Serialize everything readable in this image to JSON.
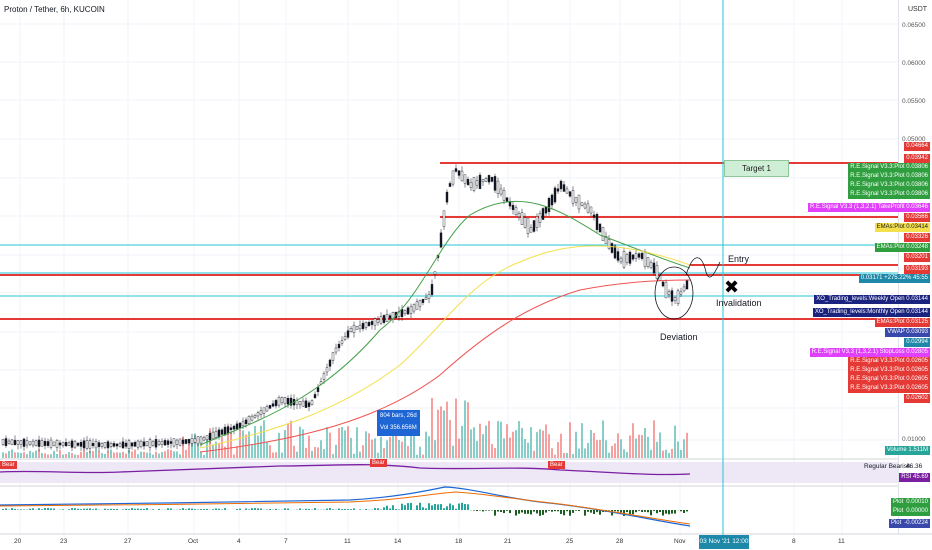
{
  "title": "Proton / Tether, 6h, KUCOIN",
  "currency": "USDT",
  "y_axis_ticks": [
    "0.06500",
    "0.06000",
    "0.05500",
    "0.05000",
    "0.01000"
  ],
  "x_axis_ticks": [
    "20",
    "23",
    "27",
    "Oct",
    "4",
    "7",
    "11",
    "14",
    "18",
    "21",
    "25",
    "28",
    "Nov",
    "8",
    "11"
  ],
  "x_axis_highlight": "03 Nov '21  12:00",
  "annotations": {
    "target": "Target 1",
    "entry": "Entry",
    "invalidation": "Invalidation",
    "deviation": "Deviation",
    "bar_tip_line1": "804 bars, 26d",
    "bar_tip_line2": "Vol 356.656M",
    "bear1": "Bear",
    "bear2": "Bear",
    "bear3": "Bear"
  },
  "price_tags": [
    {
      "text": "0.04664",
      "color": "#e53935"
    },
    {
      "text": "0.03942",
      "color": "#e53935"
    },
    {
      "text": "R.E.Signal V3.3:Plot  0.03806",
      "color": "#2e9e3e"
    },
    {
      "text": "R.E.Signal V3.3:Plot  0.03806",
      "color": "#2e9e3e"
    },
    {
      "text": "R.E.Signal V3.3:Plot  0.03806",
      "color": "#2e9e3e"
    },
    {
      "text": "R.E.Signal V3.3:Plot  0.03806",
      "color": "#2e9e3e"
    },
    {
      "text": "R.E.Signal V3.3 (1,3,2.1) TakeProfit  0.03646",
      "color": "#e040fb"
    },
    {
      "text": "0.03566",
      "color": "#e53935"
    },
    {
      "text": "EMAs:Plot  0.03414",
      "color": "#f4e04d"
    },
    {
      "text": "0.03326",
      "color": "#e53935"
    },
    {
      "text": "EMAs:Plot  0.03248",
      "color": "#2e9e3e"
    },
    {
      "text": "0.03201",
      "color": "#e53935"
    },
    {
      "text": "0.03193",
      "color": "#e53935"
    },
    {
      "text": "0.03171  +275.22%  45:55",
      "color": "#1e88a8"
    },
    {
      "text": "XO_Trading_levels:Weekly Open  0.03144",
      "color": "#1a237e"
    },
    {
      "text": "XO_Trading_levels:Monthly Open  0.03144",
      "color": "#1a237e"
    },
    {
      "text": "EMAs:Plot  0.03125",
      "color": "#e53935"
    },
    {
      "text": "VWAP  0.03093",
      "color": "#3949ab"
    },
    {
      "text": "0.02994",
      "color": "#1e88a8"
    },
    {
      "text": "R.E.Signal V3.3 (1,3,2.1) StopLoss  0.02805",
      "color": "#e040fb"
    },
    {
      "text": "R.E.Signal V3.3:Plot  0.02605",
      "color": "#e53935"
    },
    {
      "text": "R.E.Signal V3.3:Plot  0.02605",
      "color": "#e53935"
    },
    {
      "text": "R.E.Signal V3.3:Plot  0.02605",
      "color": "#e53935"
    },
    {
      "text": "R.E.Signal V3.3:Plot  0.02605",
      "color": "#e53935"
    },
    {
      "text": "0.02602",
      "color": "#e53935"
    }
  ],
  "volume_tag": {
    "label": "Volume",
    "value": "1.511M"
  },
  "rsi_panel": {
    "label1": "Regular Bearish",
    "value1": "46.36",
    "label2": "RSI",
    "value2": "45.69"
  },
  "macd_panel": [
    {
      "label": "Plot",
      "value": "0.00010",
      "color": "#2e9e3e"
    },
    {
      "label": "Plot",
      "value": "0.00000",
      "color": "#2e9e3e"
    },
    {
      "label": "Plot",
      "value": "-0.00224",
      "color": "#3949ab"
    }
  ],
  "colors": {
    "up": "#26a69a",
    "down": "#ef5350",
    "red_line": "#e53935",
    "cyan_line": "#26c6da"
  }
}
